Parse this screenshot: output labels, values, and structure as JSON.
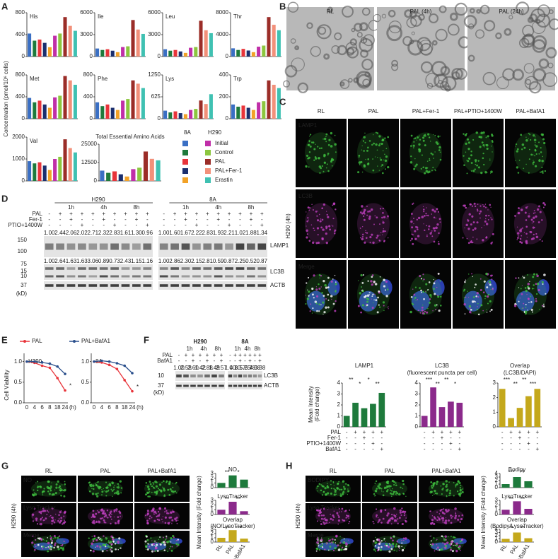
{
  "A": {
    "label": "A",
    "ylabel": "Concentration (pmol/10⁶ cells)",
    "legend": {
      "headers": [
        "8A",
        "H290"
      ],
      "items": [
        "Initial",
        "Control",
        "PAL",
        "PAL+Fer-1",
        "Erastin"
      ],
      "colors_8A": [
        "#3a6fc4",
        "#1e7a3c",
        "#e8343a",
        "#1b2f6e",
        "#f2a227"
      ],
      "colors_H290": [
        "#c02ea8",
        "#8cc63f",
        "#9b2d28",
        "#f2907a",
        "#3fc1b2"
      ]
    },
    "charts": [
      {
        "title": "His",
        "ylim": [
          0,
          800
        ],
        "yticks": [
          0,
          400,
          800
        ],
        "values": [
          420,
          290,
          310,
          250,
          170,
          380,
          420,
          720,
          560,
          470
        ]
      },
      {
        "title": "Ile",
        "ylim": [
          0,
          6000
        ],
        "yticks": [
          0,
          3000,
          6000
        ],
        "values": [
          1100,
          900,
          1000,
          800,
          600,
          1300,
          1400,
          5000,
          3700,
          3100
        ]
      },
      {
        "title": "Leu",
        "ylim": [
          0,
          6000
        ],
        "yticks": [
          0,
          3000,
          6000
        ],
        "values": [
          1000,
          800,
          900,
          700,
          500,
          1200,
          1300,
          4900,
          3600,
          3200
        ]
      },
      {
        "title": "Thr",
        "ylim": [
          0,
          8000
        ],
        "yticks": [
          0,
          4000,
          8000
        ],
        "values": [
          1500,
          1200,
          1400,
          1100,
          800,
          1800,
          2000,
          7200,
          5800,
          4800
        ]
      },
      {
        "title": "Met",
        "ylim": [
          0,
          800
        ],
        "yticks": [
          0,
          400,
          800
        ],
        "values": [
          380,
          300,
          330,
          260,
          200,
          390,
          420,
          780,
          700,
          620
        ]
      },
      {
        "title": "Phe",
        "ylim": [
          0,
          800
        ],
        "yticks": [
          0,
          400,
          800
        ],
        "values": [
          300,
          230,
          260,
          200,
          160,
          330,
          360,
          700,
          640,
          560
        ]
      },
      {
        "title": "Lys",
        "ylim": [
          0,
          1250
        ],
        "yticks": [
          0,
          625,
          1250
        ],
        "values": [
          230,
          180,
          210,
          160,
          130,
          250,
          280,
          520,
          420,
          700
        ]
      },
      {
        "title": "Trp",
        "ylim": [
          0,
          400
        ],
        "yticks": [
          0,
          200,
          400
        ],
        "values": [
          130,
          110,
          120,
          100,
          80,
          150,
          160,
          350,
          310,
          280
        ]
      },
      {
        "title": "Val",
        "ylim": [
          0,
          2000
        ],
        "yticks": [
          0,
          1000,
          2000
        ],
        "values": [
          900,
          800,
          850,
          700,
          500,
          1000,
          1100,
          1900,
          1500,
          1300
        ]
      },
      {
        "title": "Total Essential Amino Acids",
        "ylim": [
          0,
          25000
        ],
        "yticks": [
          0,
          12500,
          25000
        ],
        "values": [
          7000,
          5500,
          6500,
          4500,
          3000,
          8000,
          9000,
          20000,
          15000,
          14000
        ]
      }
    ]
  },
  "B": {
    "label": "B",
    "images": [
      "RL",
      "PAL (4h)",
      "PAL (24h)"
    ]
  },
  "C": {
    "label": "C",
    "columns": [
      "RL",
      "PAL",
      "PAL+Fer-1",
      "PAL+PTIO+1400W",
      "PAL+BafA1"
    ],
    "rows": [
      "LAMP1",
      "LC3B",
      "Merge"
    ],
    "side": "H290 (4h)",
    "ylabel": [
      "Mean Intensity",
      "(Fold change)"
    ],
    "charts": [
      {
        "title": "LAMP1",
        "color": "#1e7a3c",
        "ylim": [
          0,
          4
        ],
        "yticks": [
          0,
          1,
          2,
          3,
          4
        ],
        "values": [
          1,
          2.2,
          1.7,
          2.1,
          3.1
        ],
        "annotations": [
          "**",
          "*",
          "*",
          "**"
        ]
      },
      {
        "title": "LC3B",
        "subtitle": "(fluorescent puncta per cell)",
        "color": "#8b2a8b",
        "ylim": [
          0,
          4
        ],
        "yticks": [
          0,
          1,
          2,
          3,
          4
        ],
        "values": [
          1,
          3.6,
          1.8,
          2.3,
          2.2
        ],
        "annotations": [
          "***",
          "**",
          "**",
          "*"
        ]
      },
      {
        "title": "Overlap",
        "subtitle": "(LC3B/DAPI)",
        "color": "#c4a81c",
        "ylim": [
          0,
          3
        ],
        "yticks": [
          0,
          1,
          2,
          3
        ],
        "values": [
          2.6,
          0.6,
          1.3,
          2.1,
          2.6
        ],
        "annotations": [
          "***",
          "**",
          "**",
          "***"
        ]
      }
    ],
    "treatments": {
      "names": [
        "PAL",
        "Fer-1",
        "PTIO+1400W",
        "BafA1"
      ],
      "signs": [
        [
          "-",
          "+",
          "+",
          "+",
          "+"
        ],
        [
          "-",
          "-",
          "+",
          "-",
          "-"
        ],
        [
          "-",
          "-",
          "-",
          "+",
          "-"
        ],
        [
          "-",
          "-",
          "-",
          "-",
          "+"
        ]
      ]
    }
  },
  "D": {
    "label": "D",
    "cell_lines": [
      "H290",
      "8A"
    ],
    "times": [
      "1h",
      "4h",
      "8h"
    ],
    "treatments": [
      "PAL",
      "Fer-1",
      "PTIO+1400W"
    ],
    "signs": [
      [
        "-",
        "+",
        "+",
        "+",
        "+",
        "+",
        "+",
        "+",
        "+",
        "+"
      ],
      [
        "-",
        "-",
        "+",
        "-",
        "-",
        "+",
        "-",
        "-",
        "+",
        "-"
      ],
      [
        "-",
        "-",
        "-",
        "+",
        "-",
        "-",
        "+",
        "-",
        "-",
        "+"
      ]
    ],
    "lamp1_ratios": [
      [
        "1.00",
        "2.44",
        "2.06",
        "2.02",
        "2.71",
        "2.32",
        "2.83",
        "1.61",
        "1.30",
        "0.96"
      ],
      [
        "1.00",
        "1.60",
        "1.67",
        "2.22",
        "2.83",
        "1.93",
        "2.21",
        "1.02",
        "1.88",
        "1.34"
      ]
    ],
    "lc3b_ratios": [
      [
        "1.00",
        "2.64",
        "1.63",
        "1.63",
        "3.06",
        "0.89",
        "0.73",
        "2.43",
        "1.15",
        "1.16"
      ],
      [
        "1.00",
        "2.86",
        "2.30",
        "2.15",
        "2.81",
        "0.59",
        "0.87",
        "2.25",
        "0.52",
        "0.87"
      ]
    ],
    "markers": [
      "150",
      "100",
      "75",
      "15",
      "10",
      "37",
      "(kD)"
    ],
    "bands": [
      "LAMP1",
      "LC3B",
      "ACTB"
    ],
    "lc3_forms": [
      "I",
      "II"
    ]
  },
  "E": {
    "label": "E",
    "ylabel": "Cell Viability",
    "xunit": "(h)",
    "charts": [
      {
        "type": "line",
        "title": "H290",
        "categories": [
          "0",
          "4",
          "6",
          "8",
          "18",
          "24"
        ],
        "ylim": [
          0,
          1.2
        ],
        "yticks": [
          {
            "value": 0,
            "label": "0.0"
          },
          {
            "value": 0.5,
            "label": "0.5"
          },
          {
            "value": 1,
            "label": "1.0"
          }
        ],
        "series": [
          {
            "name": "PAL",
            "color": "#e8343a",
            "values": [
              1,
              0.97,
              0.9,
              0.85,
              0.6,
              0.3
            ]
          },
          {
            "name": "PAL+BafA1",
            "color": "#2a4f8c",
            "values": [
              1,
              1,
              0.98,
              0.95,
              0.88,
              0.7
            ]
          }
        ],
        "annotation": "*"
      },
      {
        "type": "line",
        "title": "8A",
        "categories": [
          "0",
          "4",
          "6",
          "8",
          "18",
          "24"
        ],
        "ylim": [
          0,
          1.2
        ],
        "yticks": [
          {
            "value": 0,
            "label": "0.0"
          },
          {
            "value": 0.5,
            "label": "0.5"
          },
          {
            "value": 1,
            "label": "1.0"
          }
        ],
        "series": [
          {
            "name": "PAL",
            "color": "#e8343a",
            "values": [
              1,
              0.98,
              0.92,
              0.82,
              0.55,
              0.28
            ]
          },
          {
            "name": "PAL+BafA1",
            "color": "#2a4f8c",
            "values": [
              1,
              1.02,
              1,
              0.96,
              0.9,
              0.72
            ]
          }
        ],
        "annotation": "*"
      }
    ]
  },
  "F": {
    "label": "F",
    "cell_lines": [
      "H290",
      "8A"
    ],
    "times": [
      "1h",
      "4h",
      "8h"
    ],
    "treatments": [
      "PAL",
      "BafA1"
    ],
    "signs": [
      [
        "-",
        "+",
        "+",
        "+",
        "+",
        "+",
        "+"
      ],
      [
        "-",
        "-",
        "+",
        "-",
        "+",
        "-",
        "+"
      ]
    ],
    "lc3b_ratios": [
      [
        "1.00",
        "2.58",
        "2.60",
        "1.42",
        "2.88",
        "1.49",
        "2.57"
      ],
      [
        "1.00",
        "4.10",
        "3.57",
        "5.25",
        "5.78",
        "4.08",
        "3.38"
      ]
    ],
    "markers": [
      "10",
      "37",
      "(kD)"
    ],
    "bands": [
      "LC3B",
      "ACTB"
    ],
    "lc3_forms": [
      "I",
      "II"
    ]
  },
  "G": {
    "label": "G",
    "columns": [
      "RL",
      "PAL",
      "PAL+BafA1"
    ],
    "rows": [
      "NO",
      "Lyso Tracker",
      "Merge"
    ],
    "side": "H290 (4h)",
    "ylabel": "Mean Intensity (Fold change)",
    "categories": [
      "RL",
      "PAL",
      "PAL +BafA1"
    ],
    "charts": [
      {
        "title": "NO",
        "color": "#1e7a3c",
        "ylim": [
          0,
          3
        ],
        "yticks": [
          0,
          1,
          2,
          3
        ],
        "values": [
          1,
          2.6,
          1.7
        ],
        "annotations": [
          "**",
          "*"
        ]
      },
      {
        "title": "LysoTracker",
        "color": "#8b2a8b",
        "ylim": [
          0,
          3
        ],
        "yticks": [
          0,
          1,
          2,
          3
        ],
        "values": [
          1,
          2.7,
          0.7
        ],
        "annotations": [
          "**",
          "**"
        ]
      },
      {
        "title": "Overlap",
        "subtitle": "(NO/LysoTracker)",
        "color": "#c4a81c",
        "ylim": [
          0,
          3
        ],
        "yticks": [
          0,
          1,
          2,
          3
        ],
        "values": [
          1,
          2.8,
          0.8
        ],
        "annotations": [
          "**",
          "***"
        ]
      }
    ]
  },
  "H": {
    "label": "H",
    "columns": [
      "RL",
      "PAL",
      "PAL+BafA1"
    ],
    "rows": [
      "BODIPY",
      "Lyso Tracker",
      "Merge"
    ],
    "side": "H290 (4h)",
    "ylabel": "Mean Intensity (Fold change)",
    "categories": [
      "RL",
      "PAL",
      "PAL +BafA1"
    ],
    "charts": [
      {
        "title": "Bodipy",
        "color": "#1e7a3c",
        "ylim": [
          0,
          4
        ],
        "yticks": [
          0,
          1,
          2,
          3,
          4
        ],
        "values": [
          1,
          3,
          1.8
        ],
        "annotations": [
          "***",
          "**"
        ]
      },
      {
        "title": "LysoTracker",
        "color": "#8b2a8b",
        "ylim": [
          0,
          3
        ],
        "yticks": [
          0,
          1,
          2,
          3
        ],
        "values": [
          1,
          2.8,
          1.2
        ],
        "annotations": [
          "**",
          "**"
        ]
      },
      {
        "title": "Overlap",
        "subtitle": "(Bodipy/LysoTracker)",
        "color": "#c4a81c",
        "ylim": [
          0,
          4
        ],
        "yticks": [
          0,
          1,
          2,
          3,
          4
        ],
        "values": [
          1,
          3,
          1.2
        ],
        "annotations": [
          "**",
          "**"
        ]
      }
    ]
  }
}
